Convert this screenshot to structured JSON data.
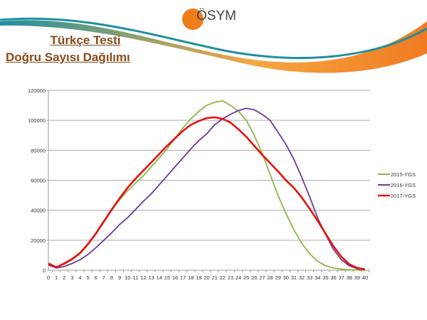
{
  "logo": {
    "text": "ÖSYM"
  },
  "header": {
    "title_line1": "Türkçe Testi",
    "title_line2": "Doğru Sayısı Dağılımı"
  },
  "colors": {
    "title": "#8a4a1a",
    "orange": "#ee7d1a",
    "teal": "#1f8fa0"
  },
  "chart_data": {
    "type": "line",
    "title": "",
    "xlabel": "",
    "ylabel": "",
    "x": [
      0,
      1,
      2,
      3,
      4,
      5,
      6,
      7,
      8,
      9,
      10,
      11,
      12,
      13,
      14,
      15,
      16,
      17,
      18,
      19,
      20,
      21,
      22,
      23,
      24,
      25,
      26,
      27,
      28,
      29,
      30,
      31,
      32,
      33,
      34,
      35,
      36,
      37,
      38,
      39,
      40
    ],
    "ylim": [
      0,
      120000
    ],
    "yticks": [
      0,
      20000,
      40000,
      60000,
      80000,
      100000,
      120000
    ],
    "grid": true,
    "legend": "right",
    "series": [
      {
        "name": "2015-YGS",
        "color": "#8db646",
        "values": [
          4000,
          2000,
          4000,
          7000,
          11000,
          17000,
          24000,
          32000,
          40000,
          47000,
          53000,
          58000,
          63000,
          69000,
          75000,
          81000,
          88000,
          95000,
          101000,
          106000,
          110000,
          112000,
          113000,
          110000,
          106000,
          100000,
          90000,
          78000,
          64000,
          50000,
          38000,
          27000,
          18000,
          11000,
          6000,
          3000,
          1500,
          700,
          300,
          100,
          50
        ]
      },
      {
        "name": "2016-YGS",
        "color": "#6a3a9a",
        "values": [
          3500,
          1500,
          2500,
          4500,
          7000,
          10500,
          15000,
          20000,
          25000,
          30500,
          35000,
          40500,
          46000,
          51000,
          57000,
          63000,
          69000,
          75000,
          81000,
          86500,
          91000,
          97000,
          101000,
          104000,
          106500,
          108000,
          107000,
          104000,
          100000,
          92000,
          84000,
          74000,
          62000,
          49000,
          35000,
          24000,
          14000,
          7000,
          3000,
          1000,
          300
        ]
      },
      {
        "name": "2017-YGS",
        "color": "#e8100f",
        "values": [
          4500,
          2000,
          4500,
          7500,
          11500,
          17500,
          24500,
          32500,
          40500,
          48000,
          55000,
          61000,
          66500,
          72000,
          77500,
          83000,
          88000,
          93000,
          97000,
          99500,
          101500,
          102000,
          101000,
          98500,
          94000,
          89000,
          83000,
          77000,
          71500,
          66000,
          60000,
          55000,
          48500,
          41000,
          33000,
          24500,
          16000,
          9000,
          4000,
          1500,
          500
        ]
      }
    ]
  }
}
